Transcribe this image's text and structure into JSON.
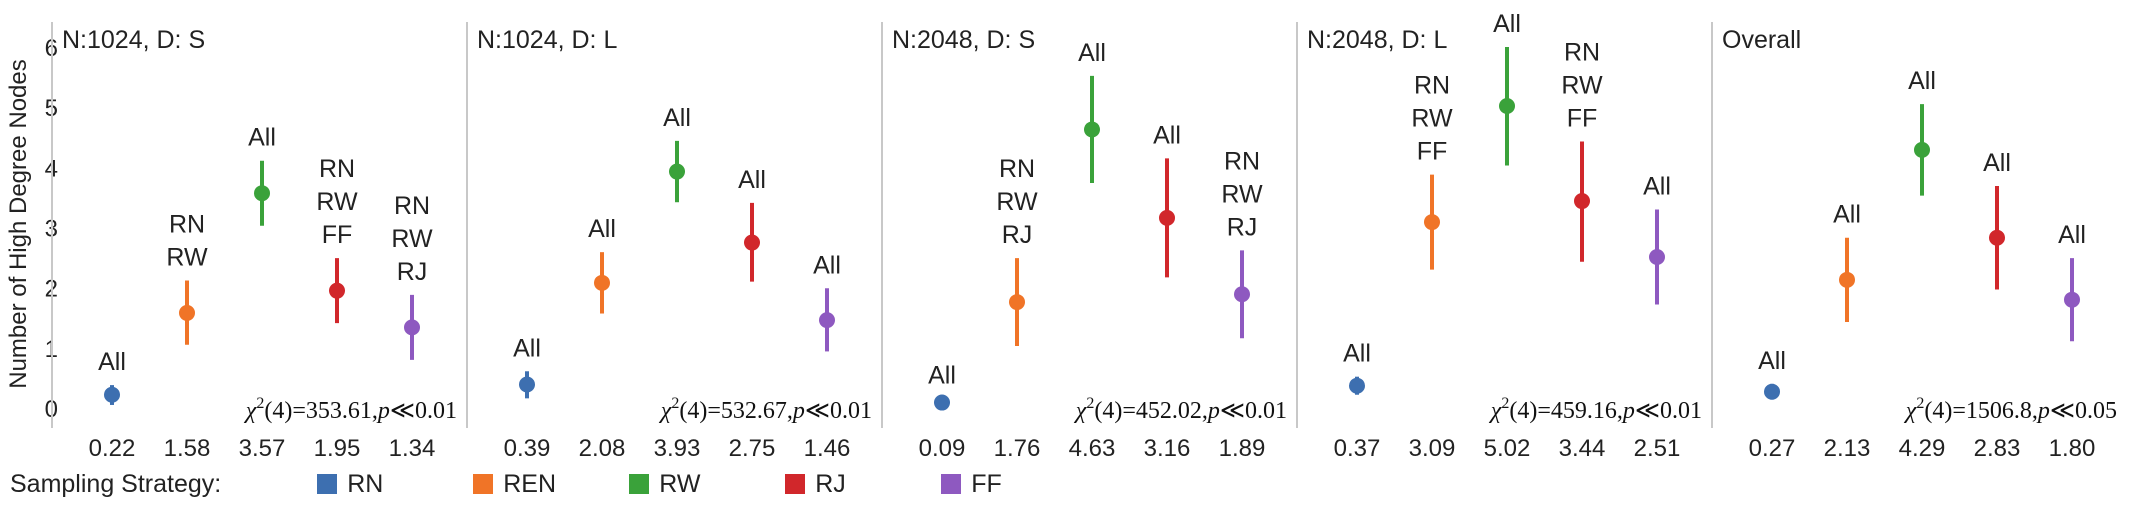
{
  "chart_data": {
    "type": "scatter",
    "ylabel": "Number of High Degree Nodes",
    "ylim": [
      -0.2,
      6.2
    ],
    "yticks": [
      0,
      1,
      2,
      3,
      4,
      5,
      6
    ],
    "grid": false,
    "legend": {
      "title": "Sampling Strategy:",
      "placement": "bottom",
      "items": [
        {
          "name": "RN",
          "color": "#3d6fb0"
        },
        {
          "name": "REN",
          "color": "#f07427"
        },
        {
          "name": "RW",
          "color": "#3aa23a"
        },
        {
          "name": "RJ",
          "color": "#d1272b"
        },
        {
          "name": "FF",
          "color": "#8e59c0"
        }
      ]
    },
    "panels": [
      {
        "title": "N:1024, D: S",
        "stat": {
          "chi": "χ",
          "sq": "2",
          "df": "(4)=353.61,",
          "p": "p",
          "rel": "≪0.01"
        },
        "points": [
          {
            "series": "RN",
            "mean": 0.22,
            "low": 0.05,
            "high": 0.38,
            "label": "0.22",
            "annotation": [
              "All"
            ]
          },
          {
            "series": "REN",
            "mean": 1.58,
            "low": 1.05,
            "high": 2.12,
            "label": "1.58",
            "annotation": [
              "RN",
              "RW"
            ]
          },
          {
            "series": "RW",
            "mean": 3.57,
            "low": 3.03,
            "high": 4.11,
            "label": "3.57",
            "annotation": [
              "All"
            ]
          },
          {
            "series": "RJ",
            "mean": 1.95,
            "low": 1.41,
            "high": 2.49,
            "label": "1.95",
            "annotation": [
              "RN",
              "RW",
              "FF"
            ]
          },
          {
            "series": "FF",
            "mean": 1.34,
            "low": 0.8,
            "high": 1.88,
            "label": "1.34",
            "annotation": [
              "RN",
              "RW",
              "RJ"
            ]
          }
        ]
      },
      {
        "title": "N:1024, D: L",
        "stat": {
          "chi": "χ",
          "sq": "2",
          "df": "(4)=532.67,",
          "p": "p",
          "rel": "≪0.01"
        },
        "points": [
          {
            "series": "RN",
            "mean": 0.39,
            "low": 0.16,
            "high": 0.61,
            "label": "0.39",
            "annotation": [
              "All"
            ]
          },
          {
            "series": "REN",
            "mean": 2.08,
            "low": 1.57,
            "high": 2.59,
            "label": "2.08",
            "annotation": [
              "All"
            ]
          },
          {
            "series": "RW",
            "mean": 3.93,
            "low": 3.42,
            "high": 4.44,
            "label": "3.93",
            "annotation": [
              "All"
            ]
          },
          {
            "series": "RJ",
            "mean": 2.75,
            "low": 2.1,
            "high": 3.41,
            "label": "2.75",
            "annotation": [
              "All"
            ]
          },
          {
            "series": "FF",
            "mean": 1.46,
            "low": 0.94,
            "high": 1.99,
            "label": "1.46",
            "annotation": [
              "All"
            ]
          }
        ]
      },
      {
        "title": "N:2048, D: S",
        "stat": {
          "chi": "χ",
          "sq": "2",
          "df": "(4)=452.02,",
          "p": "p",
          "rel": "≪0.01"
        },
        "points": [
          {
            "series": "RN",
            "mean": 0.09,
            "low": 0.02,
            "high": 0.16,
            "label": "0.09",
            "annotation": [
              "All"
            ]
          },
          {
            "series": "REN",
            "mean": 1.76,
            "low": 1.03,
            "high": 2.49,
            "label": "1.76",
            "annotation": [
              "RN",
              "RW",
              "RJ"
            ]
          },
          {
            "series": "RW",
            "mean": 4.63,
            "low": 3.74,
            "high": 5.52,
            "label": "4.63",
            "annotation": [
              "All"
            ]
          },
          {
            "series": "RJ",
            "mean": 3.16,
            "low": 2.17,
            "high": 4.15,
            "label": "3.16",
            "annotation": [
              "All"
            ]
          },
          {
            "series": "FF",
            "mean": 1.89,
            "low": 1.16,
            "high": 2.62,
            "label": "1.89",
            "annotation": [
              "RN",
              "RW",
              "RJ"
            ]
          }
        ]
      },
      {
        "title": "N:2048, D: L",
        "stat": {
          "chi": "χ",
          "sq": "2",
          "df": "(4)=459.16,",
          "p": "p",
          "rel": "≪0.01"
        },
        "points": [
          {
            "series": "RN",
            "mean": 0.37,
            "low": 0.22,
            "high": 0.52,
            "label": "0.37",
            "annotation": [
              "All"
            ]
          },
          {
            "series": "REN",
            "mean": 3.09,
            "low": 2.3,
            "high": 3.88,
            "label": "3.09",
            "annotation": [
              "RN",
              "RW",
              "FF"
            ]
          },
          {
            "series": "RW",
            "mean": 5.02,
            "low": 4.03,
            "high": 6.0,
            "label": "5.02",
            "annotation": [
              "All"
            ]
          },
          {
            "series": "RJ",
            "mean": 3.44,
            "low": 2.43,
            "high": 4.43,
            "label": "3.44",
            "annotation": [
              "RN",
              "RW",
              "FF"
            ]
          },
          {
            "series": "FF",
            "mean": 2.51,
            "low": 1.72,
            "high": 3.3,
            "label": "2.51",
            "annotation": [
              "All"
            ]
          }
        ]
      },
      {
        "title": "Overall",
        "stat": {
          "chi": "χ",
          "sq": "2",
          "df": "(4)=1506.8,",
          "p": "p",
          "rel": "≪0.05"
        },
        "points": [
          {
            "series": "RN",
            "mean": 0.27,
            "low": 0.14,
            "high": 0.4,
            "label": "0.27",
            "annotation": [
              "All"
            ]
          },
          {
            "series": "REN",
            "mean": 2.13,
            "low": 1.43,
            "high": 2.83,
            "label": "2.13",
            "annotation": [
              "All"
            ]
          },
          {
            "series": "RW",
            "mean": 4.29,
            "low": 3.53,
            "high": 5.05,
            "label": "4.29",
            "annotation": [
              "All"
            ]
          },
          {
            "series": "RJ",
            "mean": 2.83,
            "low": 1.97,
            "high": 3.69,
            "label": "2.83",
            "annotation": [
              "All"
            ]
          },
          {
            "series": "FF",
            "mean": 1.8,
            "low": 1.11,
            "high": 2.49,
            "label": "1.80",
            "annotation": [
              "All"
            ]
          }
        ]
      }
    ]
  }
}
